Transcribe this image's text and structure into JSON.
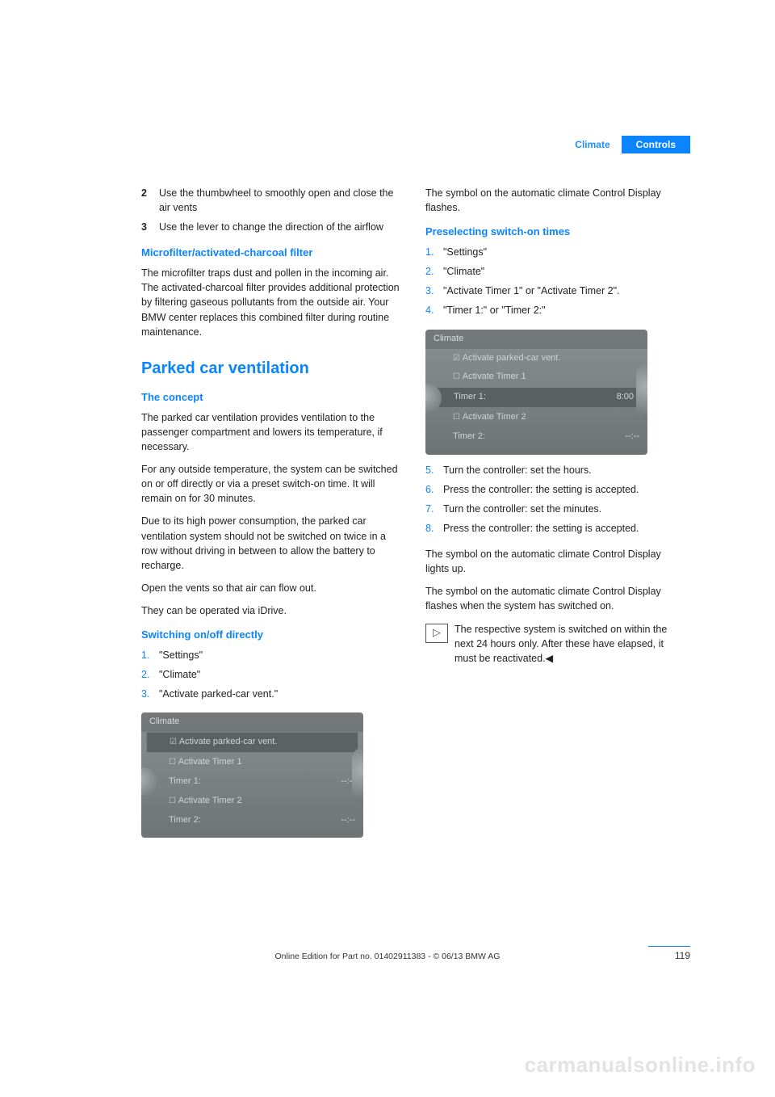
{
  "header": {
    "climate": "Climate",
    "controls": "Controls",
    "climate_color": "#1e90ff",
    "controls_bg": "#0a84ff",
    "controls_color": "#ffffff"
  },
  "left": {
    "list1": [
      {
        "n": "2",
        "text": "Use the thumbwheel to smoothly open and close the air vents"
      },
      {
        "n": "3",
        "text": "Use the lever to change the direction of the airflow"
      }
    ],
    "microfilter_h": "Microfilter/activated-charcoal filter",
    "microfilter_p": "The microfilter traps dust and pollen in the incoming air. The activated-charcoal filter provides additional protection by filtering gaseous pollutants from the outside air. Your BMW center replaces this combined filter during routine maintenance.",
    "parked_h": "Parked car ventilation",
    "concept_h": "The concept",
    "concept_p1": "The parked car ventilation provides ventilation to the passenger compartment and lowers its temperature, if necessary.",
    "concept_p2": "For any outside temperature, the system can be switched on or off directly or via a preset switch-on time. It will remain on for 30 minutes.",
    "concept_p3": "Due to its high power consumption, the parked car ventilation system should not be switched on twice in a row without driving in between to allow the battery to recharge.",
    "concept_p4": "Open the vents so that air can flow out.",
    "concept_p5": "They can be operated via iDrive.",
    "switch_h": "Switching on/off directly",
    "switch_list": [
      {
        "n": "1.",
        "text": "\"Settings\""
      },
      {
        "n": "2.",
        "text": "\"Climate\""
      },
      {
        "n": "3.",
        "text": "\"Activate parked-car vent.\""
      }
    ],
    "shot1": {
      "title": "Climate",
      "rows": [
        {
          "label": "Activate parked-car vent.",
          "val": "",
          "sel": true,
          "checked": true
        },
        {
          "label": "Activate Timer 1",
          "val": "",
          "checkbox": true
        },
        {
          "label": "Timer 1:",
          "val": "--:--"
        },
        {
          "label": "Activate Timer 2",
          "val": "",
          "checkbox": true
        },
        {
          "label": "Timer 2:",
          "val": "--:--"
        }
      ]
    }
  },
  "right": {
    "flash_p": "The symbol on the automatic climate Control Display flashes.",
    "preselect_h": "Preselecting switch-on times",
    "preselect_list": [
      {
        "n": "1.",
        "text": "\"Settings\""
      },
      {
        "n": "2.",
        "text": "\"Climate\""
      },
      {
        "n": "3.",
        "text": "\"Activate Timer 1\" or \"Activate Timer 2\"."
      },
      {
        "n": "4.",
        "text": "\"Timer 1:\" or \"Timer 2:\""
      }
    ],
    "shot2": {
      "title": "Climate",
      "rows": [
        {
          "label": "Activate parked-car vent.",
          "val": "",
          "checked": true
        },
        {
          "label": "Activate Timer 1",
          "val": "",
          "checkbox": true
        },
        {
          "label": "Timer 1:",
          "val": "8:00",
          "sel": true
        },
        {
          "label": "Activate Timer 2",
          "val": "",
          "checkbox": true
        },
        {
          "label": "Timer 2:",
          "val": "--:--"
        }
      ]
    },
    "list2": [
      {
        "n": "5.",
        "text": "Turn the controller: set the hours."
      },
      {
        "n": "6.",
        "text": "Press the controller: the setting is accepted."
      },
      {
        "n": "7.",
        "text": "Turn the controller: set the minutes."
      },
      {
        "n": "8.",
        "text": "Press the controller: the setting is accepted."
      }
    ],
    "lights_p": "The symbol on the automatic climate Control Display lights up.",
    "flash2_p": "The symbol on the automatic climate Control Display flashes when the system has switched on.",
    "note_p": "The respective system is switched on within the next 24 hours only. After these have elapsed, it must be reactivated.◀"
  },
  "footer": {
    "line": "Online Edition for Part no. 01402911383 - © 06/13 BMW AG",
    "page": "119"
  },
  "watermark": "carmanualsonline.info"
}
